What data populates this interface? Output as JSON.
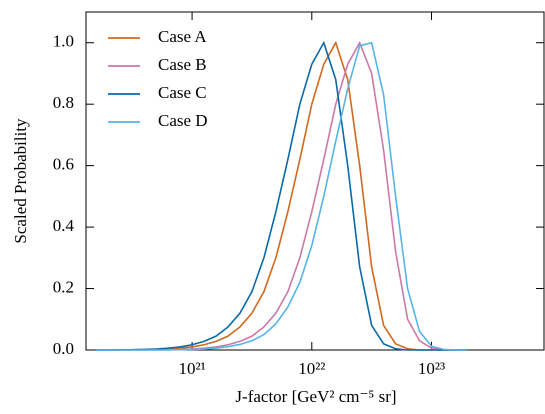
{
  "chart_data": {
    "type": "line",
    "xlabel": "J-factor [GeV² cm⁻⁵ sr]",
    "ylabel": "Scaled Probability",
    "xscale": "log",
    "xlim": [
      1.3e+20,
      8.7e+23
    ],
    "ylim": [
      0,
      1.1
    ],
    "xticks": [
      {
        "value": 1e+21,
        "label": "10²¹"
      },
      {
        "value": 1e+22,
        "label": "10²²"
      },
      {
        "value": 1e+23,
        "label": "10²³"
      }
    ],
    "yticks": [
      {
        "value": 0,
        "label": "0.0"
      },
      0.2,
      0.4,
      0.6,
      0.8,
      {
        "value": 1,
        "label": "1.0"
      }
    ],
    "legend": "upper-left",
    "x": [
      1.585e+20,
      1.995e+20,
      2.512e+20,
      3.162e+20,
      3.981e+20,
      5.012e+20,
      6.31e+20,
      7.943e+20,
      1e+21,
      1.259e+21,
      1.585e+21,
      1.995e+21,
      2.512e+21,
      3.162e+21,
      3.981e+21,
      5.012e+21,
      6.31e+21,
      7.943e+21,
      1e+22,
      1.259e+22,
      1.585e+22,
      1.995e+22,
      2.512e+22,
      3.162e+22,
      3.981e+22,
      5.012e+22,
      6.31e+22,
      7.943e+22,
      1e+23,
      1.259e+23,
      1.585e+23,
      1.995e+23
    ],
    "series": [
      {
        "name": "Case A",
        "color": "#d2691e",
        "values": [
          0,
          0,
          0,
          0.0005,
          0.001,
          0.002,
          0.003,
          0.006,
          0.01,
          0.017,
          0.028,
          0.045,
          0.075,
          0.12,
          0.19,
          0.3,
          0.45,
          0.62,
          0.8,
          0.93,
          1,
          0.88,
          0.6,
          0.27,
          0.08,
          0.02,
          0.004,
          0,
          0,
          0,
          0,
          0
        ]
      },
      {
        "name": "Case B",
        "color": "#cc79a7",
        "values": [
          0,
          0,
          0,
          0,
          0,
          0.0005,
          0.001,
          0.002,
          0.003,
          0.006,
          0.01,
          0.017,
          0.028,
          0.045,
          0.075,
          0.12,
          0.19,
          0.3,
          0.45,
          0.62,
          0.8,
          0.93,
          1,
          0.9,
          0.65,
          0.32,
          0.1,
          0.03,
          0.006,
          0,
          0,
          0
        ]
      },
      {
        "name": "Case C",
        "color": "#0a6aa8",
        "values": [
          0,
          0,
          0.0005,
          0.001,
          0.002,
          0.003,
          0.006,
          0.01,
          0.017,
          0.028,
          0.045,
          0.075,
          0.12,
          0.19,
          0.3,
          0.45,
          0.62,
          0.8,
          0.93,
          1,
          0.88,
          0.6,
          0.27,
          0.08,
          0.02,
          0.004,
          0,
          0,
          0,
          0,
          0,
          0
        ]
      },
      {
        "name": "Case D",
        "color": "#56b4e9",
        "values": [
          0,
          0,
          0,
          0,
          0,
          0,
          0,
          0.001,
          0.002,
          0.003,
          0.006,
          0.011,
          0.018,
          0.03,
          0.05,
          0.085,
          0.14,
          0.22,
          0.34,
          0.5,
          0.68,
          0.85,
          0.99,
          1,
          0.83,
          0.5,
          0.2,
          0.06,
          0.012,
          0.002,
          0,
          0
        ]
      }
    ]
  }
}
